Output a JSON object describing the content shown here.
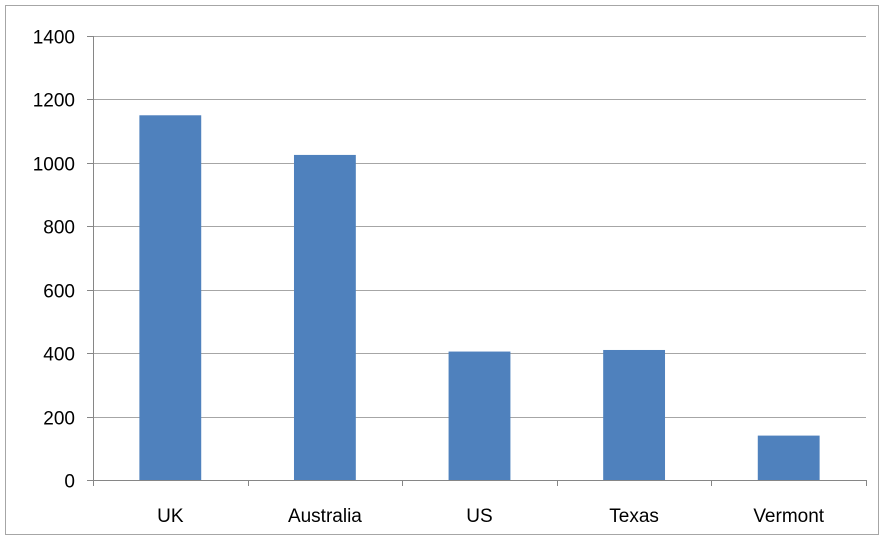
{
  "chart_data": {
    "type": "bar",
    "title": "",
    "xlabel": "",
    "ylabel": "",
    "categories": [
      "UK",
      "Australia",
      "US",
      "Texas",
      "Vermont"
    ],
    "values": [
      1150,
      1025,
      405,
      410,
      140
    ],
    "ylim": [
      0,
      1400
    ],
    "yticks": [
      "0",
      "200",
      "400",
      "600",
      "800",
      "1000",
      "1200",
      "1400"
    ],
    "grid": true,
    "legend": "none",
    "colors": {
      "bar": "#4f81bd",
      "grid": "#a6a6a6",
      "axis": "#868686"
    }
  }
}
